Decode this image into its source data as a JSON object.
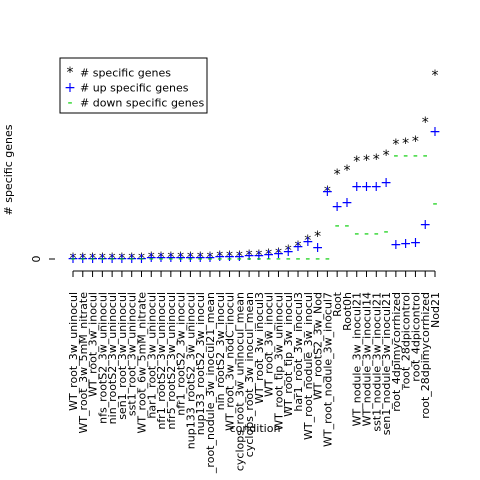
{
  "chart_data": {
    "type": "scatter",
    "xlabel": "condition",
    "ylabel": "# specific genes",
    "categories": [
      "WT_root_3w_uninocul",
      "WT_root_3w_5mM_nitrate",
      "WT_root_3w_inocul",
      "nfs_rootS2_3w_uninocul",
      "nin_rootS2_3w_uninocul",
      "sen1_root_3w_uninocul",
      "sst1_root_3w_uninocul",
      "WT_root_6w_5mM_nitrate",
      "har1_root_3w_uninocul",
      "nfr1_rootS2_3w_uninocul",
      "nfr5_rootS2_3w_uninocul",
      "nfr1_rootS2_3w_inocul",
      "nup133_rootS2_3w_uninocul",
      "nup133_rootS2_3w_inocul",
      "_root_nodule_3w_inocul21_mean",
      "nin_rootS2_3w_inocul",
      "WT_root_3w_nodC_inocul",
      "cyclops_root_3w_uninocul_mean",
      "cyclops_root_3w_inocul_mean",
      "WT_root_3w_inocul3",
      "WT_root_3w_inocul",
      "WT_root_tip_3w_uninocul",
      "WT_root_tip_3w_inocul",
      "har1_root_3w_inocul3",
      "WT_root_nodule_3w_inocul",
      "WT_rootS2_3w_Nod",
      "WT_root_nodule_3w_inocul7",
      "Root",
      "Root0h",
      "WT_nodule_3w_inocul21",
      "WT_nodule_3w_inocul14",
      "sst1_nodule_3w_inocul21",
      "sen1_nodule_3w_inocul21",
      "root_4dpimycorrhized",
      "root_28dpicontrol",
      "root_4dpicontrol",
      "root_28dpimycorrhized",
      "Nod21"
    ],
    "series": [
      {
        "name": "# specific genes",
        "color": "#000000",
        "marker": "*",
        "values": [
          0,
          0,
          0,
          0,
          0,
          0,
          0,
          0,
          1,
          1,
          1,
          1,
          1,
          1,
          1,
          2,
          2,
          2,
          3,
          3,
          4,
          5,
          8,
          12,
          18,
          22,
          67,
          84,
          88,
          97,
          98,
          99,
          103,
          114,
          115,
          117,
          136,
          183
        ]
      },
      {
        "name": "# up specific genes",
        "color": "#0000ff",
        "marker": "+",
        "values": [
          0,
          0,
          0,
          0,
          0,
          0,
          0,
          0,
          1,
          1,
          1,
          1,
          1,
          1,
          1,
          2,
          2,
          2,
          3,
          3,
          4,
          5,
          7,
          12,
          17,
          11,
          67,
          52,
          56,
          72,
          72,
          72,
          76,
          14,
          15,
          16,
          34,
          127
        ]
      },
      {
        "name": "# down specific genes",
        "color": "#00cd00",
        "marker": "-",
        "values": [
          0,
          0,
          0,
          0,
          0,
          0,
          0,
          0,
          0,
          0,
          0,
          0,
          0,
          0,
          0,
          0,
          0,
          0,
          0,
          0,
          0,
          0,
          0,
          0,
          0,
          0,
          0,
          33,
          33,
          25,
          25,
          25,
          27,
          103,
          103,
          103,
          103,
          55
        ]
      }
    ],
    "ylim": [
      -10,
      190
    ],
    "yticks": [
      0
    ],
    "legend": "top-left"
  }
}
